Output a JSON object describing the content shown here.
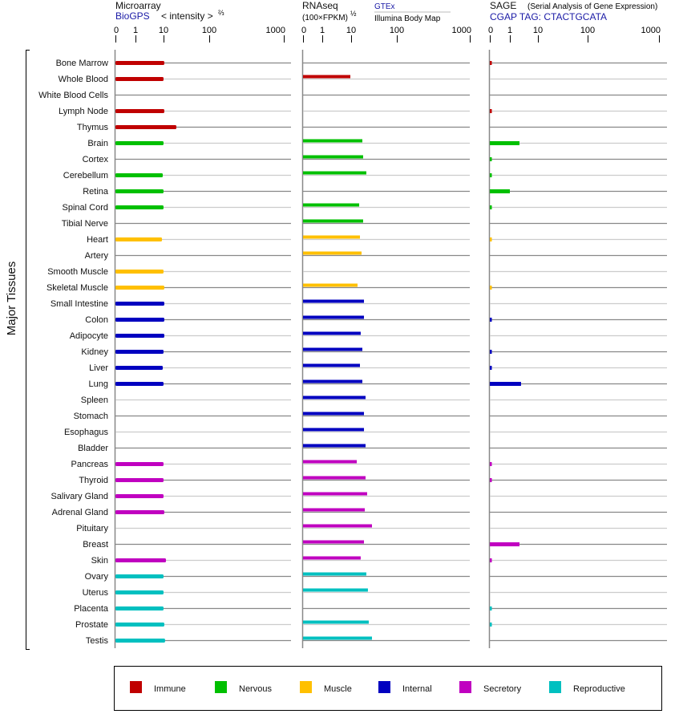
{
  "chart_data": {
    "type": "bar",
    "orientation": "horizontal",
    "ylabel": "Major Tissues",
    "categories": [
      "Bone Marrow",
      "Whole Blood",
      "White Blood Cells",
      "Lymph Node",
      "Thymus",
      "Brain",
      "Cortex",
      "Cerebellum",
      "Retina",
      "Spinal Cord",
      "Tibial Nerve",
      "Heart",
      "Artery",
      "Smooth Muscle",
      "Skeletal Muscle",
      "Small Intestine",
      "Colon",
      "Adipocyte",
      "Kidney",
      "Liver",
      "Lung",
      "Spleen",
      "Stomach",
      "Esophagus",
      "Bladder",
      "Pancreas",
      "Thyroid",
      "Salivary Gland",
      "Adrenal Gland",
      "Pituitary",
      "Breast",
      "Skin",
      "Ovary",
      "Uterus",
      "Placenta",
      "Prostate",
      "Testis"
    ],
    "groups": [
      "Immune",
      "Immune",
      "Immune",
      "Immune",
      "Immune",
      "Nervous",
      "Nervous",
      "Nervous",
      "Nervous",
      "Nervous",
      "Nervous",
      "Muscle",
      "Muscle",
      "Muscle",
      "Muscle",
      "Internal",
      "Internal",
      "Internal",
      "Internal",
      "Internal",
      "Internal",
      "Internal",
      "Internal",
      "Internal",
      "Internal",
      "Secretory",
      "Secretory",
      "Secretory",
      "Secretory",
      "Secretory",
      "Secretory",
      "Secretory",
      "Reproductive",
      "Reproductive",
      "Reproductive",
      "Reproductive",
      "Reproductive"
    ],
    "tick_labels": [
      "0",
      "1",
      "10",
      "100",
      "1000"
    ],
    "xlim": [
      0,
      1000
    ],
    "panels": [
      {
        "name": "Microarray",
        "source": "BioGPS",
        "unit_label": "< intensity >",
        "unit_exp": "⅔",
        "values": [
          10.4,
          10,
          null,
          10.4,
          19.1,
          10,
          null,
          9.4,
          10,
          10,
          null,
          8.8,
          null,
          10,
          10.4,
          10.4,
          10.4,
          10.4,
          10,
          9.4,
          10,
          null,
          null,
          null,
          null,
          10,
          10,
          10,
          10.4,
          null,
          null,
          11.3,
          10,
          10,
          10,
          10.4,
          10.8
        ]
      },
      {
        "name": "RNAseq",
        "unit_label": "(100×FPKM)",
        "unit_exp": "½",
        "source": "GTEx",
        "source2": "Illumina Body Map",
        "values": [
          null,
          9.4,
          null,
          null,
          null,
          17.6,
          18.3,
          21.5,
          null,
          15,
          18.3,
          15.6,
          16.9,
          null,
          13.8,
          19.1,
          19.1,
          16.2,
          17.6,
          15.6,
          17.6,
          20.7,
          19.1,
          19.1,
          20.7,
          13.3,
          20.7,
          22.4,
          19.9,
          28.6,
          19.1,
          16.2,
          21.5,
          23.3,
          null,
          24.3,
          28.6
        ]
      },
      {
        "name": "SAGE",
        "subtitle": "(Serial Analysis of Gene Expression)",
        "source": "CGAP TAG: CTACTGCATA",
        "values": [
          0.1,
          null,
          null,
          0.1,
          null,
          2.2,
          0.1,
          0.1,
          1.0,
          0.1,
          null,
          0.1,
          null,
          null,
          0.1,
          null,
          0.1,
          null,
          0.1,
          0.1,
          2.5,
          null,
          null,
          null,
          null,
          0.1,
          0.1,
          null,
          null,
          null,
          2.2,
          0.1,
          null,
          null,
          0.1,
          0.1,
          null
        ]
      }
    ],
    "legend": [
      {
        "label": "Immune",
        "color": "#c00000"
      },
      {
        "label": "Nervous",
        "color": "#00c000"
      },
      {
        "label": "Muscle",
        "color": "#ffc000"
      },
      {
        "label": "Internal",
        "color": "#0000c0"
      },
      {
        "label": "Secretory",
        "color": "#c000c0"
      },
      {
        "label": "Reproductive",
        "color": "#00c0c0"
      }
    ],
    "legend_position": "bottom"
  }
}
